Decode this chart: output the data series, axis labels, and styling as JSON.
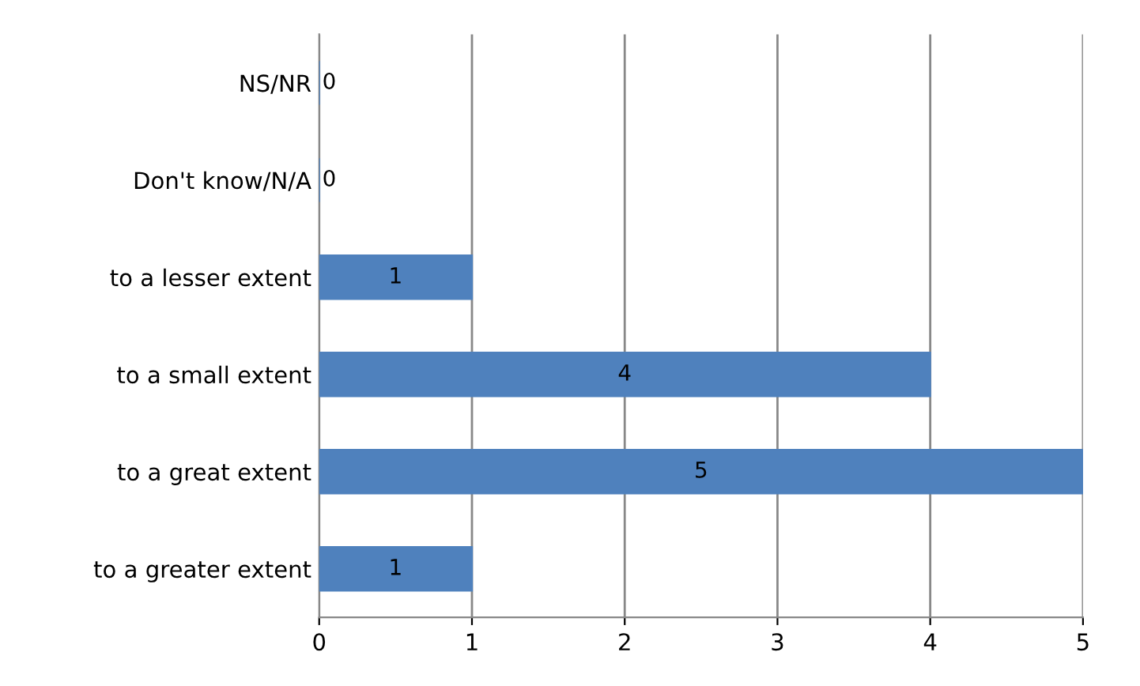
{
  "chart_data": {
    "type": "bar",
    "orientation": "horizontal",
    "categories": [
      "NS/NR",
      "Don't know/N/A",
      "to a lesser extent",
      "to a small extent",
      "to a great extent",
      "to a greater extent"
    ],
    "values": [
      0,
      0,
      1,
      4,
      5,
      1
    ],
    "color": "#4f81bd",
    "xlim": [
      0,
      5
    ],
    "xticks": [
      0,
      1,
      2,
      3,
      4,
      5
    ],
    "grid": "x",
    "data_labels": true
  }
}
